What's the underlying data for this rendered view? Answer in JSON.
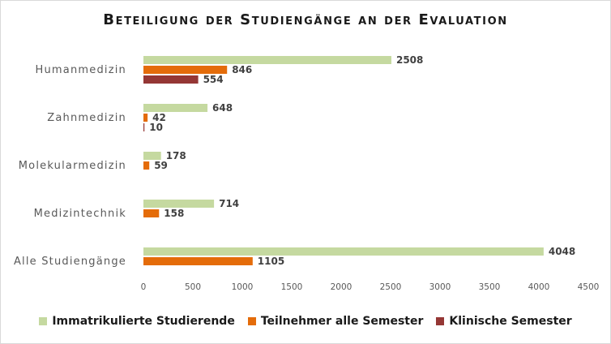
{
  "chart_data": {
    "type": "bar",
    "orientation": "horizontal",
    "title": "Beteiligung der Studiengänge an der Evaluation",
    "categories": [
      "Humanmedizin",
      "Zahnmedizin",
      "Molekularmedizin",
      "Medizintechnik",
      "Alle Studiengänge"
    ],
    "series": [
      {
        "name": "Immatrikulierte Studierende",
        "color": "#c5d9a0",
        "values": [
          2508,
          648,
          178,
          714,
          4048
        ]
      },
      {
        "name": "Teilnehmer alle Semester",
        "color": "#e46c0a",
        "values": [
          846,
          42,
          59,
          158,
          1105
        ]
      },
      {
        "name": "Klinische Semester",
        "color": "#953735",
        "values": [
          554,
          10,
          null,
          null,
          null
        ]
      }
    ],
    "xlim": [
      0,
      4500
    ],
    "xticks": [
      0,
      500,
      1000,
      1500,
      2000,
      2500,
      3000,
      3500,
      4000,
      4500
    ],
    "grid": false,
    "legend": "bottom"
  }
}
